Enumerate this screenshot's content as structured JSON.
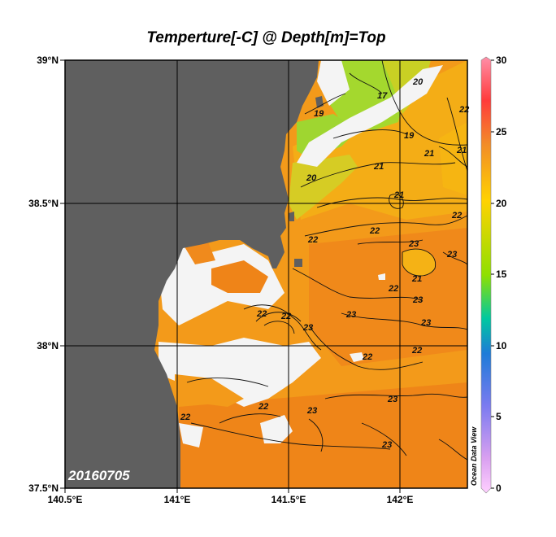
{
  "title": "Temperture[-C] @ Depth[m]=Top",
  "date_stamp": "20160705",
  "watermark": "Ocean Data View",
  "colors": {
    "land": "#5f5f5f",
    "nodata": "#f4f4f4",
    "warm": "#f0881c",
    "mid": "#f5a713",
    "cool": "#b8d42a",
    "cold": "#8fd735"
  },
  "axes": {
    "lat_ticks": [
      "39°N",
      "38.5°N",
      "38°N",
      "37.5°N"
    ],
    "lon_ticks": [
      "140.5°E",
      "141°E",
      "141.5°E",
      "142°E"
    ]
  },
  "colorbar": {
    "ticks": [
      "30",
      "25",
      "20",
      "15",
      "10",
      "5",
      "0"
    ],
    "stops": [
      "#ff8fa8",
      "#ff3b3b",
      "#f28c28",
      "#ffd200",
      "#8fe000",
      "#00c8a0",
      "#1e7bd8",
      "#7b7bf0",
      "#d9a0f0",
      "#ffd0ff"
    ]
  },
  "contour_labels": [
    "19",
    "17",
    "20",
    "19",
    "20",
    "21",
    "21",
    "22",
    "21",
    "22",
    "22",
    "21",
    "22",
    "22",
    "23",
    "23",
    "21",
    "22",
    "23",
    "23",
    "23",
    "22",
    "22",
    "23",
    "22",
    "22",
    "23",
    "23",
    "22",
    "23"
  ]
}
